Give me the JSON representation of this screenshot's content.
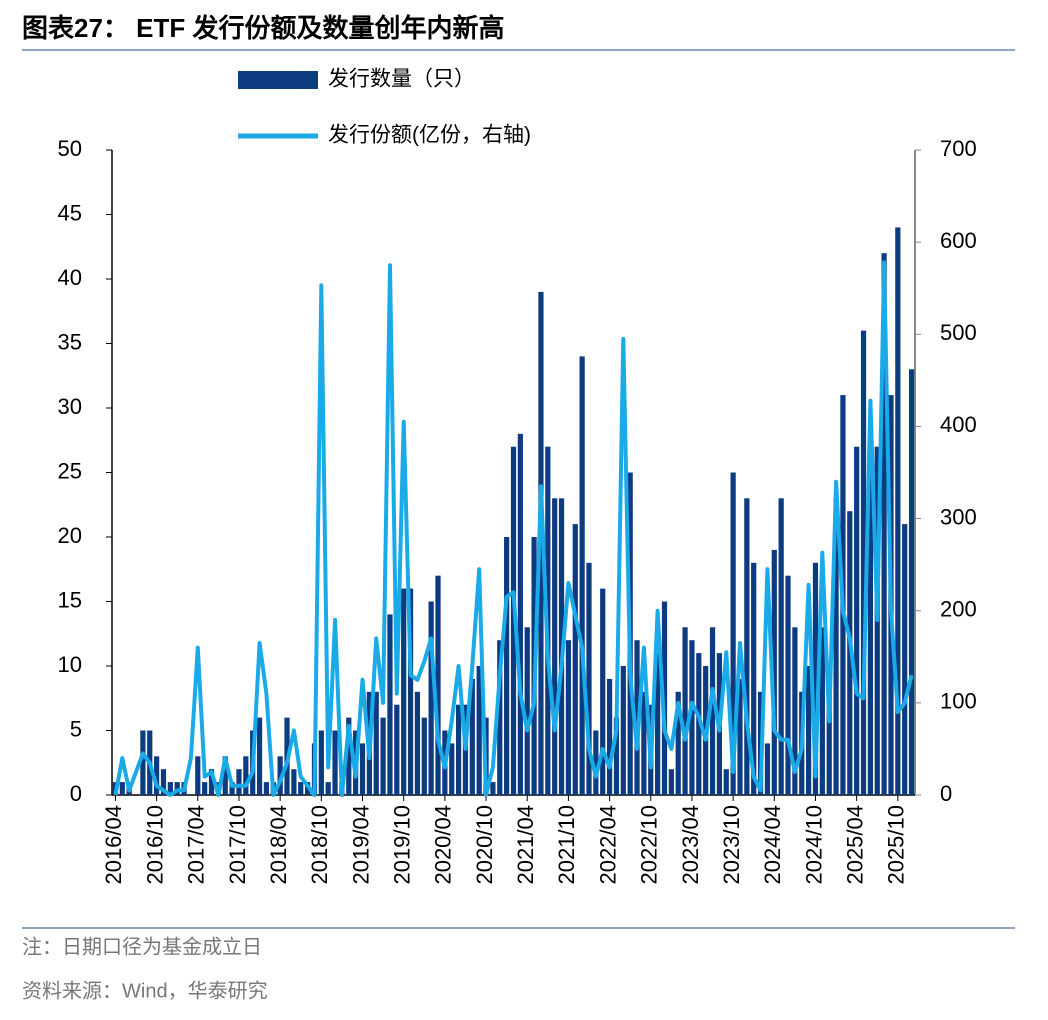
{
  "chart_data": {
    "type": "bar_line",
    "title": "图表27： ETF 发行份额及数量创年内新高",
    "notes": [
      "注：日期口径为基金成立日",
      "资料来源：Wind，华泰研究"
    ],
    "legend": "top",
    "categories": [
      "2016/04",
      null,
      null,
      null,
      null,
      null,
      "2016/10",
      null,
      null,
      null,
      null,
      null,
      "2017/04",
      null,
      null,
      null,
      null,
      null,
      "2017/10",
      null,
      null,
      null,
      null,
      null,
      "2018/04",
      null,
      null,
      null,
      null,
      null,
      "2018/10",
      null,
      null,
      null,
      null,
      null,
      "2019/04",
      null,
      null,
      null,
      null,
      null,
      "2019/10",
      null,
      null,
      null,
      null,
      null,
      "2020/04",
      null,
      null,
      null,
      null,
      null,
      "2020/10",
      null,
      null,
      null,
      null,
      null,
      "2021/04",
      null,
      null,
      null,
      null,
      null,
      "2021/10",
      null,
      null,
      null,
      null,
      null,
      "2022/04",
      null,
      null,
      null,
      null,
      null,
      "2022/10",
      null,
      null,
      null,
      null,
      null,
      "2023/04",
      null,
      null,
      null,
      null,
      null,
      "2023/10",
      null,
      null,
      null,
      null,
      null,
      "2024/04",
      null,
      null,
      null,
      null,
      null,
      "2024/10",
      null,
      null,
      null,
      null,
      null,
      "2025/04",
      null,
      null,
      null,
      null,
      null,
      "2025/10",
      null,
      null
    ],
    "series": [
      {
        "name": "发行数量（只）",
        "type": "bar",
        "color": "#0d3b80",
        "axis": "y",
        "values": [
          1,
          1,
          1,
          0,
          5,
          5,
          3,
          2,
          1,
          1,
          1,
          0,
          3,
          1,
          2,
          1,
          3,
          1,
          2,
          3,
          5,
          6,
          1,
          1,
          3,
          6,
          2,
          1,
          1,
          4,
          5,
          1,
          5,
          1,
          6,
          5,
          4,
          8,
          8,
          6,
          14,
          7,
          16,
          16,
          8,
          6,
          15,
          17,
          5,
          4,
          7,
          7,
          9,
          10,
          6,
          1,
          12,
          20,
          27,
          28,
          13,
          20,
          39,
          27,
          23,
          23,
          12,
          21,
          34,
          18,
          5,
          16,
          9,
          6,
          10,
          25,
          12,
          8,
          7,
          11,
          15,
          2,
          8,
          13,
          12,
          11,
          10,
          13,
          11,
          2,
          25,
          9,
          23,
          18,
          8,
          4,
          19,
          23,
          17,
          13,
          8,
          10,
          18,
          13,
          9,
          23,
          31,
          22,
          27,
          36,
          26,
          27,
          42,
          31,
          44,
          21,
          33
        ]
      },
      {
        "name": "发行份额(亿份，右轴)",
        "type": "line",
        "color": "#1aaae8",
        "axis": "y2",
        "values": [
          0,
          40,
          5,
          25,
          45,
          35,
          10,
          5,
          0,
          5,
          5,
          40,
          160,
          20,
          25,
          0,
          40,
          10,
          10,
          10,
          25,
          165,
          110,
          0,
          15,
          35,
          70,
          20,
          10,
          0,
          553,
          30,
          190,
          0,
          75,
          20,
          125,
          40,
          170,
          100,
          575,
          110,
          405,
          130,
          125,
          145,
          170,
          60,
          30,
          80,
          140,
          50,
          140,
          245,
          0,
          30,
          130,
          215,
          220,
          110,
          70,
          100,
          335,
          150,
          70,
          140,
          230,
          195,
          160,
          50,
          20,
          50,
          30,
          70,
          495,
          130,
          50,
          160,
          30,
          200,
          70,
          50,
          100,
          60,
          100,
          85,
          60,
          115,
          70,
          155,
          25,
          165,
          80,
          20,
          5,
          245,
          70,
          60,
          60,
          25,
          50,
          228,
          20,
          263,
          80,
          340,
          200,
          170,
          110,
          105,
          428,
          190,
          578,
          200,
          90,
          100,
          130
        ]
      }
    ],
    "ylim": [
      0,
      50
    ],
    "yticks": [
      0,
      5,
      10,
      15,
      20,
      25,
      30,
      35,
      40,
      45,
      50
    ],
    "y2lim": [
      0,
      700
    ],
    "y2ticks": [
      0,
      100,
      200,
      300,
      400,
      500,
      600,
      700
    ]
  }
}
